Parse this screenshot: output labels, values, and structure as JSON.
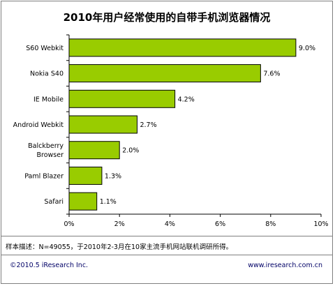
{
  "chart_data": {
    "type": "bar",
    "orientation": "horizontal",
    "title": "2010年用户经常使用的自带手机浏览器情况",
    "categories": [
      "S60 Webkit",
      "Nokia S40",
      "IE Mobile",
      "Android Webkit",
      "Balckberry Browser",
      "Paml Blazer",
      "Safari"
    ],
    "category_lines": [
      [
        "S60 Webkit"
      ],
      [
        "Nokia S40"
      ],
      [
        "IE Mobile"
      ],
      [
        "Android Webkit"
      ],
      [
        "Balckberry",
        "Browser"
      ],
      [
        "Paml Blazer"
      ],
      [
        "Safari"
      ]
    ],
    "values": [
      9.0,
      7.6,
      4.2,
      2.7,
      2.0,
      1.3,
      1.1
    ],
    "value_labels": [
      "9.0%",
      "7.6%",
      "4.2%",
      "2.7%",
      "2.0%",
      "1.3%",
      "1.1%"
    ],
    "xlim": [
      0,
      10
    ],
    "xticks": [
      0,
      2,
      4,
      6,
      8,
      10
    ],
    "xtick_labels": [
      "0%",
      "2%",
      "4%",
      "6%",
      "8%",
      "10%"
    ],
    "xlabel": "",
    "ylabel": "",
    "grid": false,
    "legend": "none",
    "colors": {
      "bar_fill": "#99cc00",
      "bar_stroke": "#000000"
    }
  },
  "note": "样本描述：N=49055，于2010年2-3月在10家主流手机网站联机调研所得。",
  "footer": {
    "copyright": "©2010.5 iResearch Inc.",
    "website": "www.iresearch.com.cn"
  }
}
